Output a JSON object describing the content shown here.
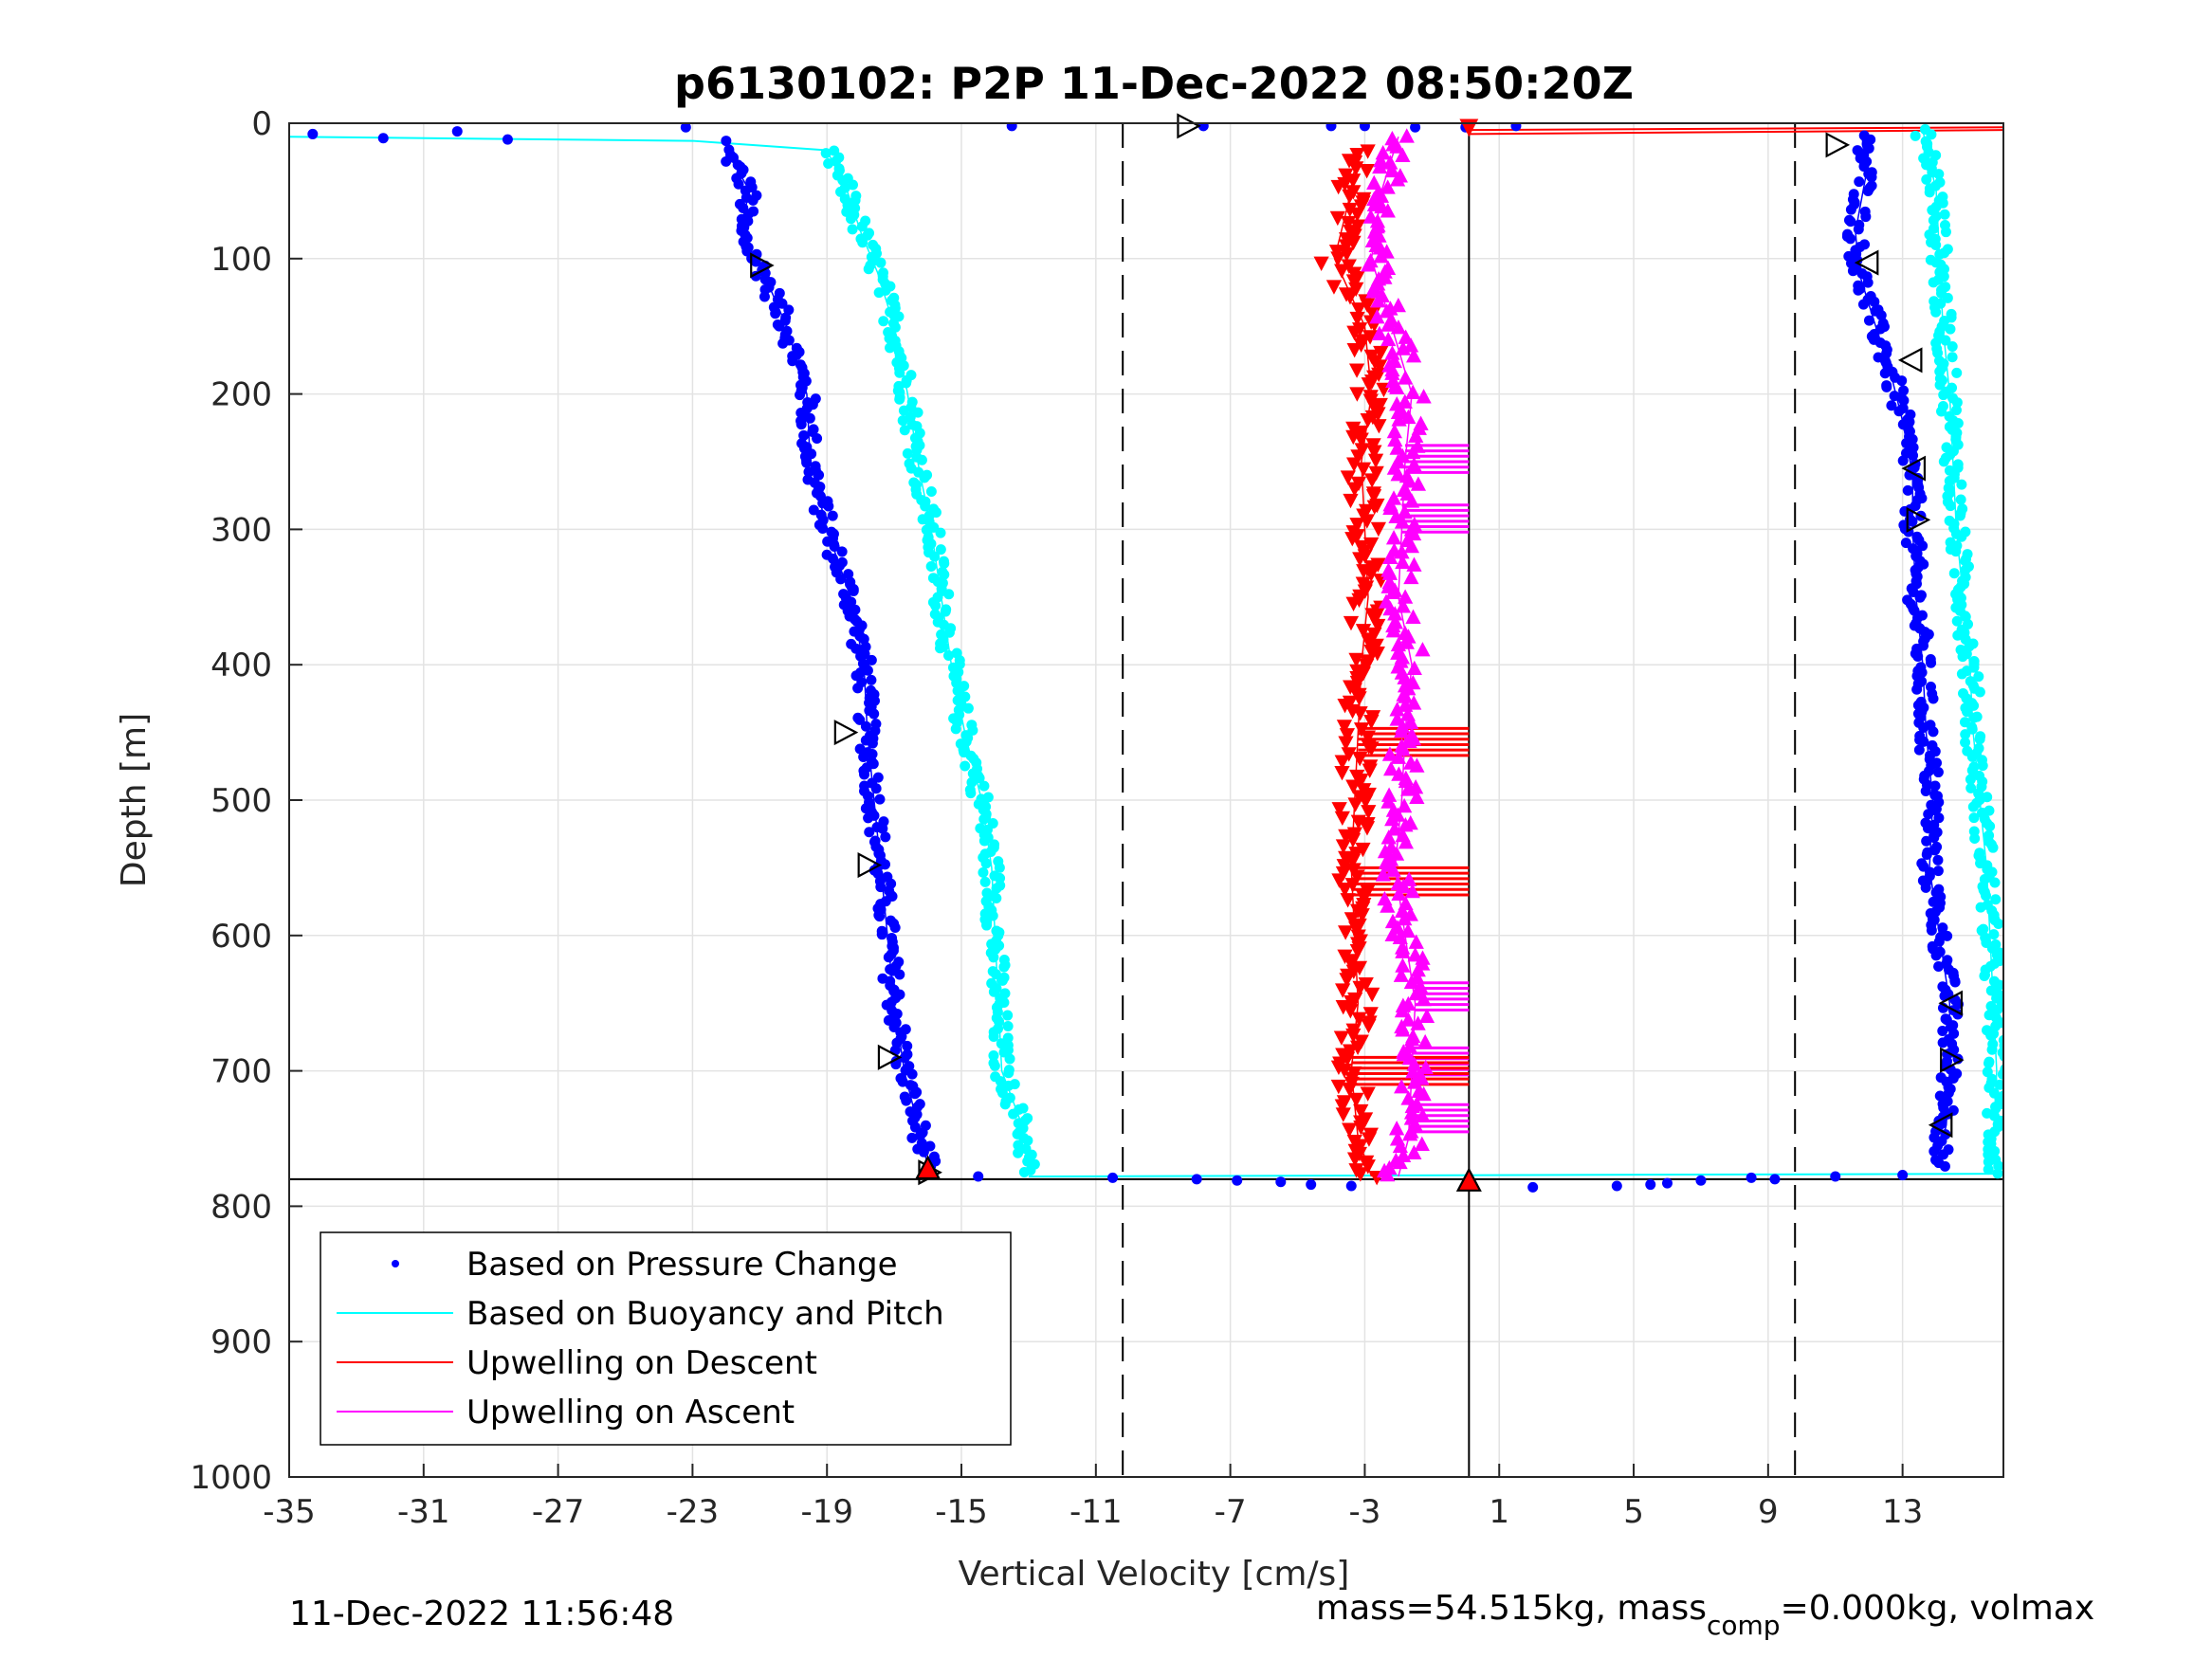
{
  "chart_data": {
    "type": "scatter",
    "title": "p6130102: P2P 11-Dec-2022 08:50:20Z",
    "xlabel": "Vertical Velocity [cm/s]",
    "ylabel": "Depth [m]",
    "xlim": [
      -35,
      16
    ],
    "ylim": [
      0,
      1000
    ],
    "y_reversed": true,
    "grid": true,
    "xticks": [
      -35,
      -31,
      -27,
      -23,
      -19,
      -15,
      -11,
      -7,
      -3,
      1,
      5,
      9,
      13
    ],
    "xtick_labels": [
      "-35",
      "-31",
      "-27",
      "-23",
      "-19",
      "-15",
      "-11",
      "-7",
      "-3",
      "1",
      "5",
      "9",
      "13"
    ],
    "yticks": [
      0,
      100,
      200,
      300,
      400,
      500,
      600,
      700,
      800,
      900,
      1000
    ],
    "ytick_labels": [
      "0",
      "100",
      "200",
      "300",
      "400",
      "500",
      "600",
      "700",
      "800",
      "900",
      "1000"
    ],
    "reference_lines": {
      "dashed_x": [
        -10.2,
        9.8
      ],
      "solid_x": [
        0.1
      ],
      "solid_y": [
        780
      ]
    },
    "legend": {
      "location": "bottom-left",
      "entries": [
        {
          "label": "Based on Pressure Change",
          "color": "#0000ff",
          "marker": "dot"
        },
        {
          "label": "Based on Buoyancy and Pitch",
          "color": "#00ffff",
          "marker": "line"
        },
        {
          "label": "Upwelling on Descent",
          "color": "#ff0000",
          "marker": "line"
        },
        {
          "label": "Upwelling on Ascent",
          "color": "#ff00ff",
          "marker": "line"
        }
      ]
    },
    "series": [
      {
        "name": "Based on Pressure Change",
        "color": "#0000ff",
        "profile": "descent",
        "depth": [
          20,
          50,
          80,
          110,
          150,
          200,
          250,
          300,
          350,
          400,
          450,
          500,
          550,
          600,
          650,
          700,
          740,
          770
        ],
        "velocity": [
          -22.0,
          -21.3,
          -21.6,
          -20.9,
          -20.2,
          -19.6,
          -19.5,
          -19.0,
          -18.3,
          -17.9,
          -17.8,
          -17.6,
          -17.4,
          -17.2,
          -17.0,
          -16.7,
          -16.3,
          -16.0
        ]
      },
      {
        "name": "Based on Buoyancy and Pitch",
        "color": "#00ffff",
        "profile": "descent",
        "depth": [
          20,
          50,
          80,
          110,
          150,
          200,
          250,
          300,
          350,
          400,
          450,
          500,
          550,
          600,
          650,
          700,
          740,
          775
        ],
        "velocity": [
          -19.0,
          -18.4,
          -18.0,
          -17.5,
          -17.0,
          -16.6,
          -16.3,
          -15.9,
          -15.6,
          -15.3,
          -14.9,
          -14.4,
          -14.1,
          -14.0,
          -13.9,
          -13.8,
          -13.2,
          -13.0
        ]
      },
      {
        "name": "Based on Pressure Change",
        "color": "#0000ff",
        "profile": "ascent",
        "depth": [
          10,
          40,
          80,
          110,
          150,
          180,
          220,
          260,
          300,
          350,
          400,
          450,
          500,
          550,
          600,
          650,
          700,
          740,
          770
        ],
        "velocity": [
          11.8,
          11.9,
          11.6,
          11.7,
          12.2,
          12.6,
          13.0,
          13.3,
          13.3,
          13.4,
          13.6,
          13.7,
          13.9,
          13.8,
          14.1,
          14.4,
          14.4,
          14.3,
          14.0
        ]
      },
      {
        "name": "Based on Buoyancy and Pitch",
        "color": "#00ffff",
        "profile": "ascent",
        "depth": [
          5,
          50,
          100,
          150,
          200,
          250,
          300,
          350,
          400,
          450,
          500,
          550,
          600,
          650,
          700,
          750,
          775
        ],
        "velocity": [
          13.6,
          14.0,
          14.1,
          14.2,
          14.4,
          14.5,
          14.6,
          14.8,
          15.0,
          15.1,
          15.3,
          15.5,
          15.6,
          15.7,
          15.8,
          15.7,
          15.8
        ]
      },
      {
        "name": "Upwelling on Descent",
        "color": "#ff0000",
        "depth": [
          20,
          60,
          100,
          150,
          200,
          250,
          300,
          350,
          400,
          450,
          500,
          550,
          600,
          650,
          700,
          750,
          778
        ],
        "velocity": [
          -3.2,
          -3.5,
          -3.9,
          -3.0,
          -2.8,
          -3.1,
          -3.0,
          -2.9,
          -3.1,
          -3.2,
          -3.3,
          -3.4,
          -3.3,
          -3.2,
          -3.4,
          -3.2,
          -2.8
        ]
      },
      {
        "name": "Upwelling on Ascent",
        "color": "#ff00ff",
        "depth": [
          10,
          50,
          100,
          150,
          200,
          250,
          300,
          350,
          400,
          450,
          500,
          550,
          600,
          650,
          700,
          750,
          778
        ],
        "velocity": [
          -2.0,
          -2.5,
          -2.8,
          -2.2,
          -1.6,
          -1.8,
          -1.9,
          -2.0,
          -1.6,
          -1.8,
          -1.9,
          -2.1,
          -1.8,
          -1.5,
          -1.6,
          -1.7,
          -2.0
        ]
      }
    ],
    "upwelling_spikes": [
      {
        "color": "#ff00ff",
        "depth": 248,
        "from": -1.8,
        "to": 0.1
      },
      {
        "color": "#ff00ff",
        "depth": 292,
        "from": -1.9,
        "to": 0.1
      },
      {
        "color": "#ff0000",
        "depth": 457,
        "from": -3.2,
        "to": 0.1
      },
      {
        "color": "#ff0000",
        "depth": 560,
        "from": -3.4,
        "to": 0.1
      },
      {
        "color": "#ff00ff",
        "depth": 645,
        "from": -1.5,
        "to": 0.1
      },
      {
        "color": "#ff00ff",
        "depth": 693,
        "from": -1.6,
        "to": 0.1
      },
      {
        "color": "#ff0000",
        "depth": 700,
        "from": -3.4,
        "to": 0.1
      },
      {
        "color": "#ff00ff",
        "depth": 735,
        "from": -1.7,
        "to": 0.1
      }
    ],
    "transition_lines": [
      {
        "color": "#00ffff",
        "x": [
          -35,
          -23,
          -19.0
        ],
        "y": [
          10,
          13,
          20
        ]
      },
      {
        "color": "#00ffff",
        "x": [
          -13.0,
          16
        ],
        "y": [
          778,
          776
        ]
      },
      {
        "color": "#ff0000",
        "x": [
          0.1,
          16
        ],
        "y": [
          5,
          3
        ]
      },
      {
        "color": "#ff0000",
        "x": [
          0.1,
          16
        ],
        "y": [
          8,
          5
        ]
      }
    ],
    "surface_points": {
      "color": "#0000ff",
      "points": [
        [
          -34.3,
          8
        ],
        [
          -32.2,
          11
        ],
        [
          -30.0,
          6
        ],
        [
          -28.5,
          12
        ],
        [
          -23.2,
          3
        ],
        [
          -22.0,
          13
        ],
        [
          -13.5,
          2
        ],
        [
          -7.8,
          2
        ],
        [
          -4.0,
          2
        ],
        [
          -3.0,
          2
        ],
        [
          -1.5,
          3
        ],
        [
          0.0,
          3
        ],
        [
          1.5,
          2
        ]
      ]
    },
    "bottom_points": {
      "color": "#0000ff",
      "points": [
        [
          -14.5,
          778
        ],
        [
          -10.5,
          779
        ],
        [
          -8.0,
          780
        ],
        [
          -6.8,
          781
        ],
        [
          -5.5,
          782
        ],
        [
          -4.6,
          784
        ],
        [
          -3.4,
          785
        ],
        [
          2.0,
          786
        ],
        [
          4.5,
          785
        ],
        [
          5.5,
          784
        ],
        [
          6.0,
          783
        ],
        [
          7.0,
          781
        ],
        [
          8.5,
          779
        ],
        [
          9.2,
          780
        ],
        [
          11.0,
          778
        ],
        [
          13.0,
          777
        ]
      ]
    },
    "markers": [
      {
        "type": "triangle-right-open",
        "x": -8.3,
        "y": 2
      },
      {
        "type": "triangle-right-open",
        "x": -21.0,
        "y": 105
      },
      {
        "type": "triangle-right-open",
        "x": -18.5,
        "y": 450
      },
      {
        "type": "triangle-right-open",
        "x": -17.8,
        "y": 548
      },
      {
        "type": "triangle-right-open",
        "x": -17.2,
        "y": 690
      },
      {
        "type": "triangle-right-open",
        "x": -16.0,
        "y": 775
      },
      {
        "type": "triangle-right-open",
        "x": 11.0,
        "y": 16
      },
      {
        "type": "triangle-left-open",
        "x": 12.0,
        "y": 103
      },
      {
        "type": "triangle-left-open",
        "x": 13.3,
        "y": 175
      },
      {
        "type": "triangle-left-open",
        "x": 13.4,
        "y": 255
      },
      {
        "type": "triangle-right-open",
        "x": 13.4,
        "y": 293
      },
      {
        "type": "triangle-left-open",
        "x": 14.5,
        "y": 650
      },
      {
        "type": "triangle-right-open",
        "x": 14.4,
        "y": 692
      },
      {
        "type": "triangle-left-open",
        "x": 14.2,
        "y": 740
      },
      {
        "type": "triangle-down-red",
        "x": 0.1,
        "y": 2
      },
      {
        "type": "triangle-up-red",
        "x": 0.1,
        "y": 782
      },
      {
        "type": "triangle-up-red",
        "x": -16.0,
        "y": 773
      }
    ]
  },
  "footer": {
    "timestamp": "11-Dec-2022 11:56:48",
    "mass_prefix": "mass=54.515kg, mass",
    "mass_subscript": "comp",
    "mass_suffix": "=0.000kg, volmax"
  }
}
